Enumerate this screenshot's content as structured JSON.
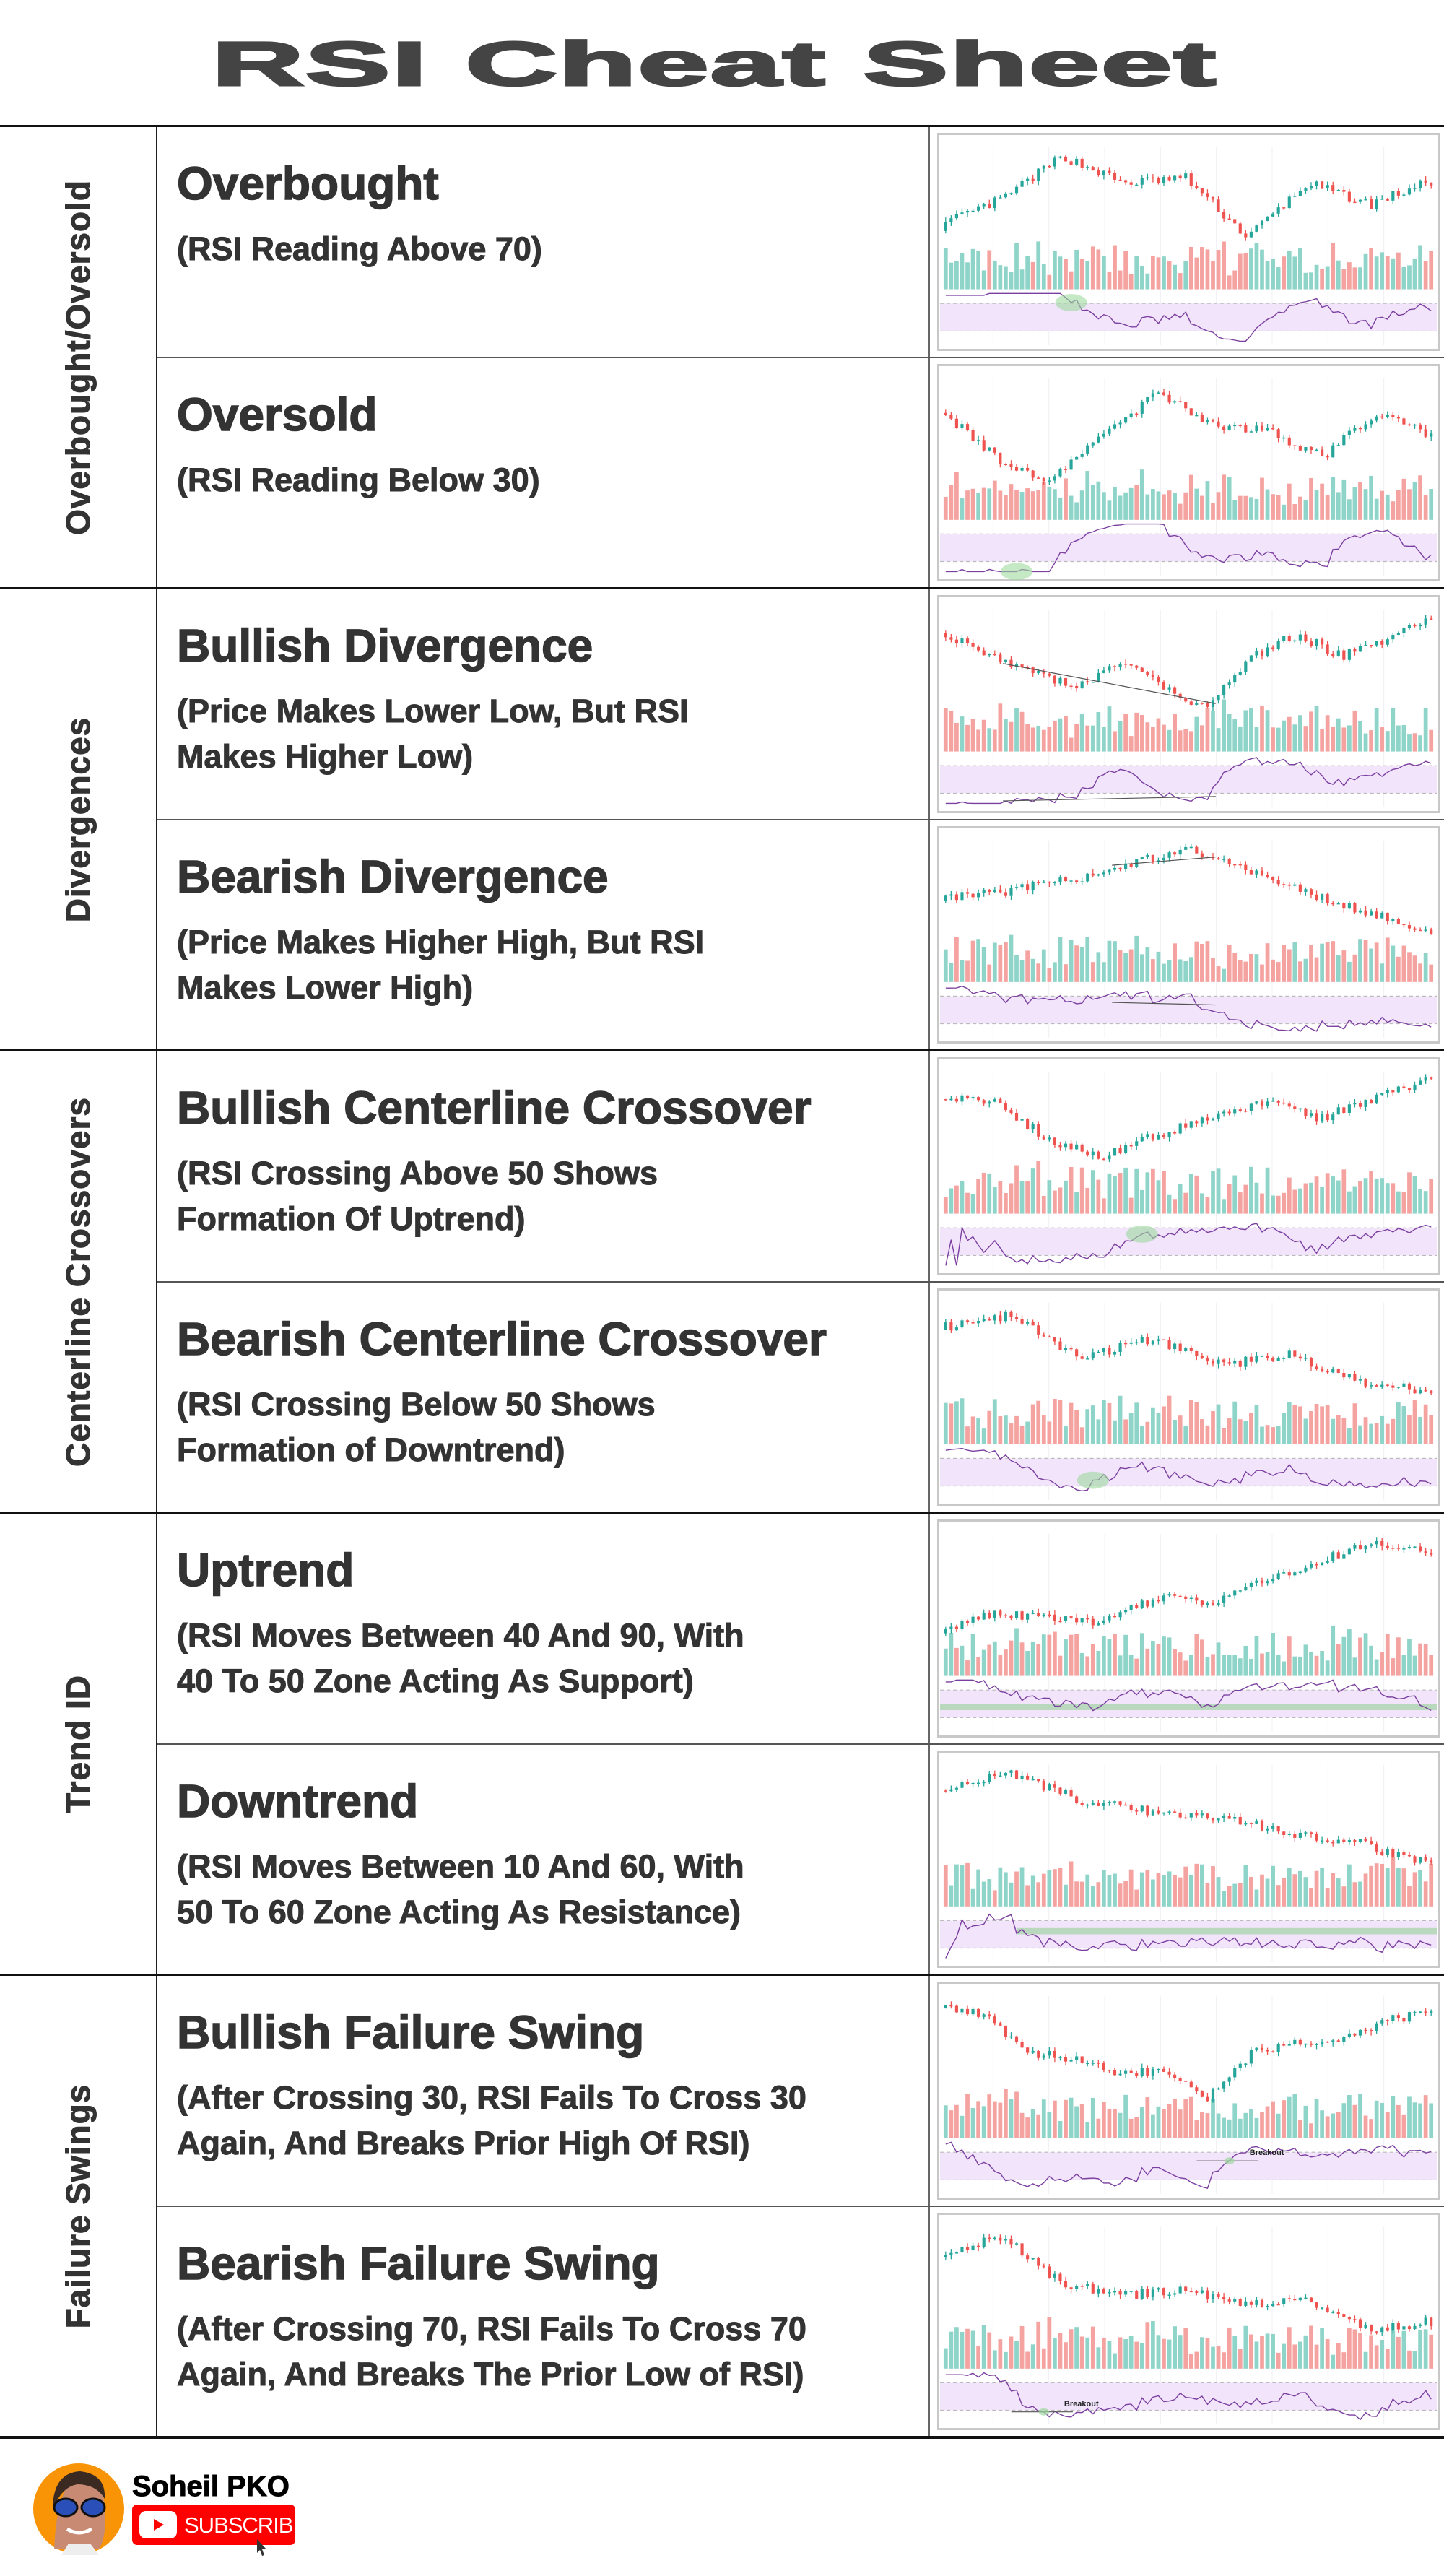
{
  "title": "RSI Cheat Sheet",
  "groups": [
    {
      "label": "Overbought/Oversold"
    },
    {
      "label": "Divergences"
    },
    {
      "label": "Centerline Crossovers"
    },
    {
      "label": "Trend ID"
    },
    {
      "label": "Failure Swings"
    }
  ],
  "rows": [
    {
      "heading": "Overbought",
      "sub": "(RSI Reading Above 70)",
      "pattern": "overbought",
      "marker": "highlight"
    },
    {
      "heading": "Oversold",
      "sub": "(RSI Reading Below 30)",
      "pattern": "oversold",
      "marker": "highlight"
    },
    {
      "heading": "Bullish Divergence",
      "sub": "(Price Makes Lower Low, But RSI\nMakes Higher Low)",
      "pattern": "bullish-divergence",
      "marker": "divergence-lines"
    },
    {
      "heading": "Bearish Divergence",
      "sub": "(Price Makes Higher High, But RSI\nMakes Lower High)",
      "pattern": "bearish-divergence",
      "marker": "divergence-lines"
    },
    {
      "heading": "Bullish Centerline Crossover",
      "sub": "(RSI Crossing Above 50 Shows\nFormation Of Uptrend)",
      "pattern": "bullish-centerline",
      "marker": "highlight"
    },
    {
      "heading": "Bearish Centerline Crossover",
      "sub": "(RSI Crossing Below 50 Shows\nFormation of Downtrend)",
      "pattern": "bearish-centerline",
      "marker": "highlight"
    },
    {
      "heading": "Uptrend",
      "sub": "(RSI Moves Between 40 And 90, With\n40 To 50 Zone Acting As Support)",
      "pattern": "uptrend",
      "marker": "zone",
      "zone": [
        40,
        50
      ]
    },
    {
      "heading": "Downtrend",
      "sub": "(RSI Moves Between 10 And 60, With\n50 To 60 Zone Acting As Resistance)",
      "pattern": "downtrend",
      "marker": "zone",
      "zone": [
        50,
        60
      ]
    },
    {
      "heading": "Bullish Failure Swing",
      "sub": "(After Crossing 30, RSI Fails To Cross 30\nAgain, And Breaks Prior High Of RSI)",
      "pattern": "bullish-failure",
      "marker": "breakout",
      "annotation": "Breakout"
    },
    {
      "heading": "Bearish Failure Swing",
      "sub": "(After Crossing 70, RSI Fails To Cross 70\nAgain, And Breaks The Prior Low of RSI)",
      "pattern": "bearish-failure",
      "marker": "breakout",
      "annotation": "Breakout"
    }
  ],
  "colors": {
    "up": "#26a69a",
    "down": "#ef5350",
    "up_volume": "#8fd4c9",
    "down_volume": "#f5a3a0",
    "rsi_line": "#7b3fa0",
    "rsi_band": "#f1e4fb",
    "highlight": "#9fd99f",
    "zone": "#b9d8bd"
  },
  "footer": {
    "author": "Soheil PKO",
    "subscribe_label": "SUBSCRIBE",
    "avatar_icon": "avatar-cartoon",
    "button_icon": "youtube-play-icon"
  }
}
